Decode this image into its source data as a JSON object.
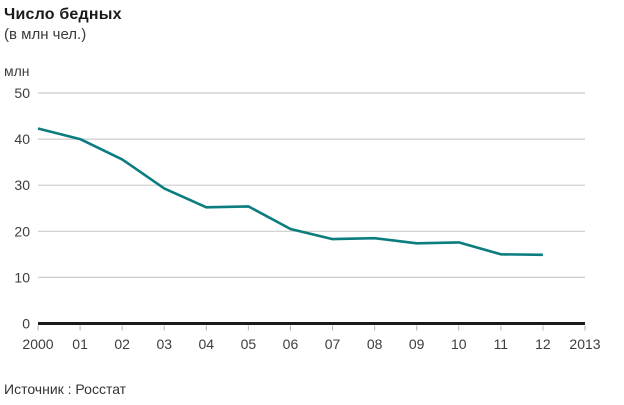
{
  "header": {
    "title": "Число бедных",
    "subtitle": "(в млн чел.)"
  },
  "footer": {
    "source": "Источник : Росстат"
  },
  "chart_data": {
    "type": "line",
    "title": "Число бедных",
    "subtitle": "(в млн чел.)",
    "y_unit": "млн",
    "series": [
      {
        "name": "Число бедных, млн чел.",
        "years": [
          2000,
          2001,
          2002,
          2003,
          2004,
          2005,
          2006,
          2007,
          2008,
          2009,
          2010,
          2011,
          2012
        ],
        "values": [
          42.3,
          40.0,
          35.6,
          29.3,
          25.2,
          25.4,
          20.5,
          18.3,
          18.5,
          17.4,
          17.6,
          15.0,
          14.9
        ]
      }
    ],
    "x_tick_labels": [
      "2000",
      "01",
      "02",
      "03",
      "04",
      "05",
      "06",
      "07",
      "08",
      "09",
      "10",
      "11",
      "12",
      "2013"
    ],
    "x_range_years": [
      2000,
      2013
    ],
    "yticks": [
      0,
      10,
      20,
      30,
      40,
      50
    ],
    "ylim": [
      0,
      50
    ],
    "grid": "horizontal-only",
    "legend": "none",
    "colors": {
      "line": "#0b7d7e",
      "grid": "#cccccc",
      "axis": "#1a1a1a",
      "tick": "#b3b3b3",
      "label_text": "#3d3d3d"
    }
  }
}
